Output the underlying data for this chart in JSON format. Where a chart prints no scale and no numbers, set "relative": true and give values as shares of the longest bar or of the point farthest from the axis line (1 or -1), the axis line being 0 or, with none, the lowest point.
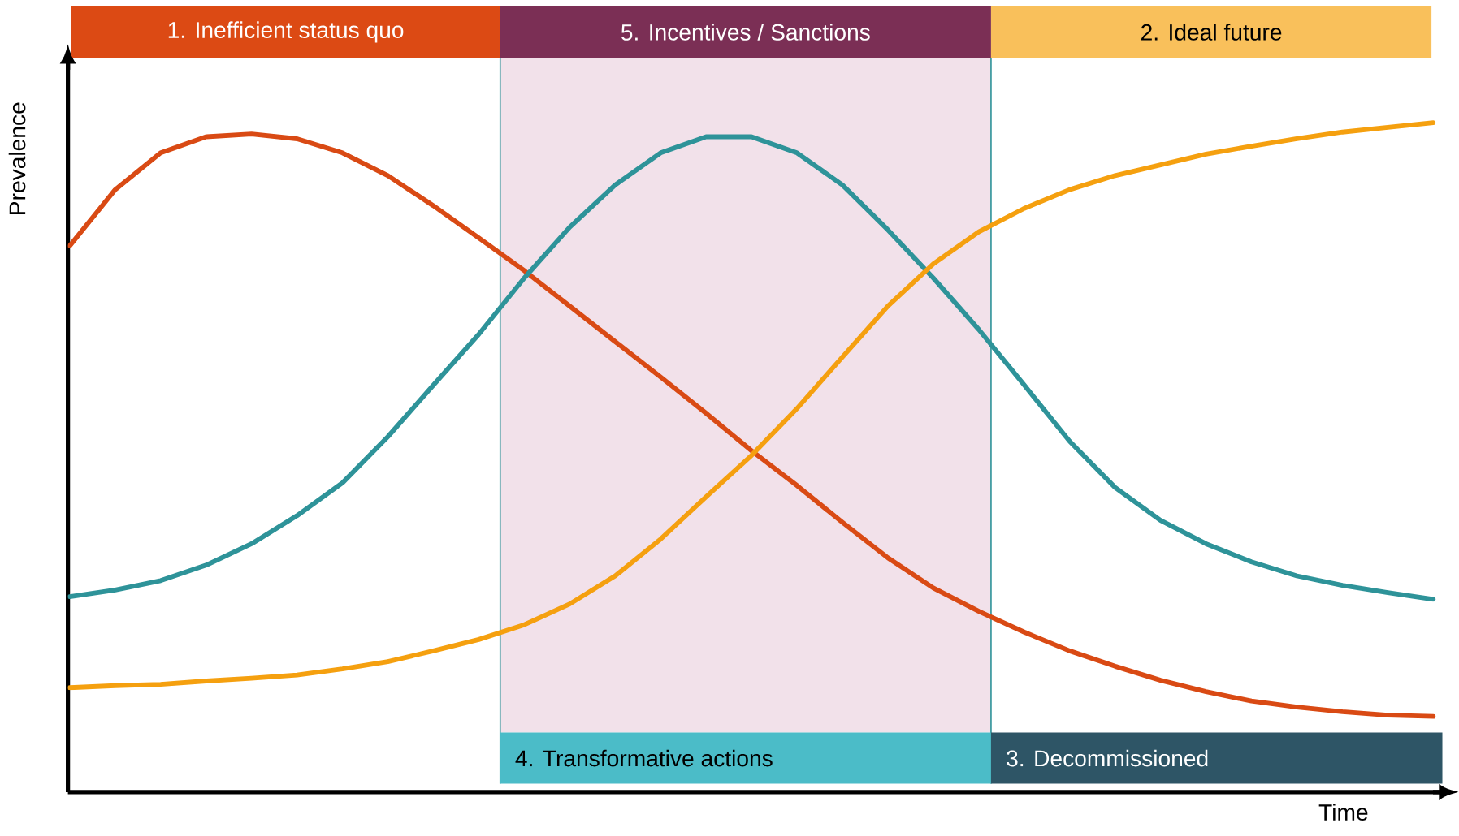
{
  "chart_data": {
    "type": "line",
    "relative": true,
    "xlabel": "Time",
    "ylabel": "Prevalence",
    "categories": [
      null,
      null,
      null,
      null,
      null,
      null,
      null,
      null,
      null,
      null,
      null,
      null,
      null,
      null,
      null,
      null,
      null,
      null,
      null,
      null,
      null,
      null,
      null,
      null,
      null,
      null,
      null,
      null,
      null,
      null,
      null
    ],
    "series": [
      {
        "color": "#d94a14",
        "values": [
          0.816,
          0.9,
          0.955,
          0.979,
          0.983,
          0.976,
          0.955,
          0.921,
          0.876,
          0.828,
          0.779,
          0.726,
          0.673,
          0.62,
          0.566,
          0.51,
          0.458,
          0.403,
          0.35,
          0.305,
          0.27,
          0.239,
          0.211,
          0.188,
          0.167,
          0.15,
          0.136,
          0.127,
          0.12,
          0.115,
          0.113
        ]
      },
      {
        "color": "#2e9399",
        "values": [
          0.292,
          0.302,
          0.316,
          0.339,
          0.371,
          0.413,
          0.462,
          0.531,
          0.608,
          0.684,
          0.768,
          0.844,
          0.907,
          0.955,
          0.979,
          0.979,
          0.955,
          0.907,
          0.84,
          0.768,
          0.691,
          0.608,
          0.524,
          0.455,
          0.406,
          0.371,
          0.344,
          0.323,
          0.309,
          0.298,
          0.288
        ]
      },
      {
        "color": "#f5a00f",
        "values": [
          0.156,
          0.159,
          0.161,
          0.166,
          0.17,
          0.175,
          0.184,
          0.195,
          0.211,
          0.228,
          0.25,
          0.281,
          0.323,
          0.378,
          0.441,
          0.503,
          0.573,
          0.65,
          0.726,
          0.789,
          0.837,
          0.872,
          0.9,
          0.921,
          0.937,
          0.953,
          0.965,
          0.976,
          0.986,
          0.993,
          1.0
        ]
      }
    ],
    "annotations": [
      "1. Inefficient status quo",
      "5. Incentives / Sanctions",
      "2. Ideal future",
      "4. Transformative actions",
      "3. Decommissioned"
    ]
  }
}
